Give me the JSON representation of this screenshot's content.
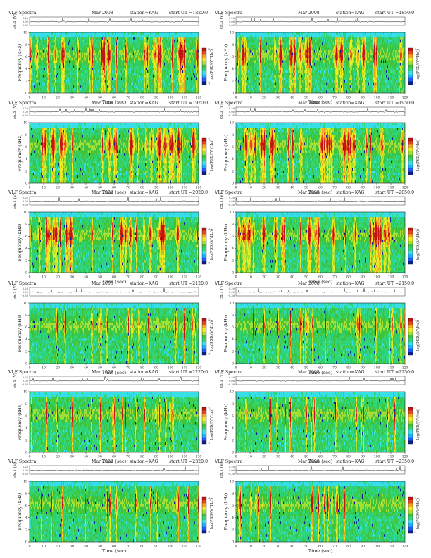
{
  "page": {
    "common": {
      "title": "VLF Spectra",
      "date": "Mar 2008",
      "station": "station=KAG",
      "start_prefix": "start  UT =",
      "ch_label": "ch.1 (V)",
      "freq_label": "Frequency (kHz)",
      "time_label": "Time (sec)",
      "cbar_label": "log(PSD/(V²/Hz))",
      "cbar_high": "-2",
      "cbar_low": "-7"
    }
  },
  "chart_data": [
    {
      "type": "heatmap",
      "start_ut": "1820:0",
      "title": "VLF Spectra",
      "date": "Mar 2008",
      "station": "station=KAG",
      "xlabel": "Time (sec)",
      "ylabel": "Frequency (kHz)",
      "x_range": [
        0,
        120
      ],
      "y_range": [
        0,
        10
      ],
      "x_ticks": [
        0,
        10,
        20,
        30,
        40,
        50,
        60,
        70,
        80,
        90,
        100,
        110,
        120
      ],
      "y_ticks": [
        0,
        2,
        4,
        6,
        8,
        10
      ],
      "colorbar": {
        "label": "log(PSD/(V²/Hz))",
        "range": [
          -7,
          -2
        ]
      },
      "waveform": {
        "ylabel": "ch.1 (V)",
        "ticks": [
          "0.20",
          "0.00",
          "-0.30"
        ]
      },
      "activity": "bursts"
    },
    {
      "type": "heatmap",
      "start_ut": "1850:0",
      "title": "VLF Spectra",
      "date": "Mar 2008",
      "station": "station=KAG",
      "xlabel": "Time (sec)",
      "ylabel": "Frequency (kHz)",
      "x_range": [
        0,
        120
      ],
      "y_range": [
        0,
        10
      ],
      "x_ticks": [
        0,
        10,
        20,
        30,
        40,
        50,
        60,
        70,
        80,
        90,
        100,
        110,
        120
      ],
      "y_ticks": [
        0,
        2,
        4,
        6,
        8,
        10
      ],
      "colorbar": {
        "label": "log(PSD/(V²/Hz))",
        "range": [
          -7,
          -2
        ]
      },
      "waveform": {
        "ylabel": "ch.1 (V)",
        "ticks": [
          "0.20",
          "0.00",
          "-0.30"
        ]
      },
      "activity": "bursts"
    },
    {
      "type": "heatmap",
      "start_ut": "1920:0",
      "title": "VLF Spectra",
      "date": "Mar 2008",
      "station": "station=KAG",
      "xlabel": "Time (sec)",
      "ylabel": "Frequency (kHz)",
      "x_range": [
        0,
        120
      ],
      "y_range": [
        0,
        10
      ],
      "x_ticks": [
        0,
        10,
        20,
        30,
        40,
        50,
        60,
        70,
        80,
        90,
        100,
        110,
        120
      ],
      "y_ticks": [
        0,
        2,
        4,
        6,
        8,
        10
      ],
      "colorbar": {
        "label": "log(PSD/(V²/Hz))",
        "range": [
          -7,
          -2
        ]
      },
      "waveform": {
        "ylabel": "ch.1 (V)",
        "ticks": [
          "0.20",
          "0.00",
          "-0.30"
        ]
      },
      "activity": "bursts"
    },
    {
      "type": "heatmap",
      "start_ut": "1950:0",
      "title": "VLF Spectra",
      "date": "Mar 2008",
      "station": "station=KAG",
      "xlabel": "Time (sec)",
      "ylabel": "Frequency (kHz)",
      "x_range": [
        0,
        120
      ],
      "y_range": [
        0,
        10
      ],
      "x_ticks": [
        0,
        10,
        20,
        30,
        40,
        50,
        60,
        70,
        80,
        90,
        100,
        110,
        120
      ],
      "y_ticks": [
        0,
        2,
        4,
        6,
        8,
        10
      ],
      "colorbar": {
        "label": "log(PSD/(V²/Hz))",
        "range": [
          -7,
          -2
        ]
      },
      "waveform": {
        "ylabel": "ch.1 (V)",
        "ticks": [
          "0.20",
          "0.00",
          "-0.30"
        ]
      },
      "activity": "bursts"
    },
    {
      "type": "heatmap",
      "start_ut": "2020:0",
      "title": "VLF Spectra",
      "date": "Mar 2008",
      "station": "station=KAG",
      "xlabel": "Time (sec)",
      "ylabel": "Frequency (kHz)",
      "x_range": [
        0,
        120
      ],
      "y_range": [
        0,
        10
      ],
      "x_ticks": [
        0,
        10,
        20,
        30,
        40,
        50,
        60,
        70,
        80,
        90,
        100,
        110,
        120
      ],
      "y_ticks": [
        0,
        2,
        4,
        6,
        8,
        10
      ],
      "colorbar": {
        "label": "log(PSD/(V²/Hz))",
        "range": [
          -7,
          -2
        ]
      },
      "waveform": {
        "ylabel": "ch.1 (V)",
        "ticks": [
          "0.20",
          "0.00",
          "-0.30"
        ]
      },
      "activity": "bursts"
    },
    {
      "type": "heatmap",
      "start_ut": "2050:0",
      "title": "VLF Spectra",
      "date": "Mar 2008",
      "station": "station=KAG",
      "xlabel": "Time (sec)",
      "ylabel": "Frequency (kHz)",
      "x_range": [
        0,
        120
      ],
      "y_range": [
        0,
        10
      ],
      "x_ticks": [
        0,
        10,
        20,
        30,
        40,
        50,
        60,
        70,
        80,
        90,
        100,
        110,
        120
      ],
      "y_ticks": [
        0,
        2,
        4,
        6,
        8,
        10
      ],
      "colorbar": {
        "label": "log(PSD/(V²/Hz))",
        "range": [
          -7,
          -2
        ]
      },
      "waveform": {
        "ylabel": "ch.1 (V)",
        "ticks": [
          "0.20",
          "0.00",
          "-0.30"
        ]
      },
      "activity": "bursts"
    },
    {
      "type": "heatmap",
      "start_ut": "2120:0",
      "title": "VLF Spectra",
      "date": "Mar 2008",
      "station": "station=KAG",
      "xlabel": "Time (sec)",
      "ylabel": "Frequency (kHz)",
      "x_range": [
        0,
        120
      ],
      "y_range": [
        0,
        10
      ],
      "x_ticks": [
        0,
        10,
        20,
        30,
        40,
        50,
        60,
        70,
        80,
        90,
        100,
        110,
        120
      ],
      "y_ticks": [
        0,
        2,
        4,
        6,
        8,
        10
      ],
      "colorbar": {
        "label": "log(PSD/(V²/Hz))",
        "range": [
          -7,
          -2
        ]
      },
      "waveform": {
        "ylabel": "ch.1 (V)",
        "ticks": [
          "0.20",
          "0.00",
          "-0.30"
        ]
      },
      "activity": "streaks"
    },
    {
      "type": "heatmap",
      "start_ut": "2150:0",
      "title": "VLF Spectra",
      "date": "Mar 2008",
      "station": "station=KAG",
      "xlabel": "Time (sec)",
      "ylabel": "Frequency (kHz)",
      "x_range": [
        0,
        120
      ],
      "y_range": [
        0,
        10
      ],
      "x_ticks": [
        0,
        10,
        20,
        30,
        40,
        50,
        60,
        70,
        80,
        90,
        100,
        110,
        120
      ],
      "y_ticks": [
        0,
        2,
        4,
        6,
        8,
        10
      ],
      "colorbar": {
        "label": "log(PSD/(V²/Hz))",
        "range": [
          -7,
          -2
        ]
      },
      "waveform": {
        "ylabel": "ch.1 (V)",
        "ticks": [
          "0.20",
          "0.00",
          "-0.30"
        ]
      },
      "activity": "streaks"
    },
    {
      "type": "heatmap",
      "start_ut": "2220:0",
      "title": "VLF Spectra",
      "date": "Mar 2008",
      "station": "station=KAG",
      "xlabel": "Time (sec)",
      "ylabel": "Frequency (kHz)",
      "x_range": [
        0,
        120
      ],
      "y_range": [
        0,
        10
      ],
      "x_ticks": [
        0,
        10,
        20,
        30,
        40,
        50,
        60,
        70,
        80,
        90,
        100,
        110,
        120
      ],
      "y_ticks": [
        0,
        2,
        4,
        6,
        8,
        10
      ],
      "colorbar": {
        "label": "log(PSD/(V²/Hz))",
        "range": [
          -7,
          -2
        ]
      },
      "waveform": {
        "ylabel": "ch.1 (V)",
        "ticks": [
          "0.20",
          "0.00",
          "-0.30"
        ]
      },
      "activity": "streaks"
    },
    {
      "type": "heatmap",
      "start_ut": "2250:0",
      "title": "VLF Spectra",
      "date": "Mar 2008",
      "station": "station=KAG",
      "xlabel": "Time (sec)",
      "ylabel": "Frequency (kHz)",
      "x_range": [
        0,
        120
      ],
      "y_range": [
        0,
        10
      ],
      "x_ticks": [
        0,
        10,
        20,
        30,
        40,
        50,
        60,
        70,
        80,
        90,
        100,
        110,
        120
      ],
      "y_ticks": [
        0,
        2,
        4,
        6,
        8,
        10
      ],
      "colorbar": {
        "label": "log(PSD/(V²/Hz))",
        "range": [
          -7,
          -2
        ]
      },
      "waveform": {
        "ylabel": "ch.1 (V)",
        "ticks": [
          "0.20",
          "0.00",
          "-0.30"
        ]
      },
      "activity": "streaks"
    },
    {
      "type": "heatmap",
      "start_ut": "2320:0",
      "title": "VLF Spectra",
      "date": "Mar 2008",
      "station": "station=KAG",
      "xlabel": "Time (sec)",
      "ylabel": "Frequency (kHz)",
      "x_range": [
        0,
        120
      ],
      "y_range": [
        0,
        10
      ],
      "x_ticks": [
        0,
        10,
        20,
        30,
        40,
        50,
        60,
        70,
        80,
        90,
        100,
        110,
        120
      ],
      "y_ticks": [
        0,
        2,
        4,
        6,
        8,
        10
      ],
      "colorbar": {
        "label": "log(PSD/(V²/Hz))",
        "range": [
          -7,
          -2
        ]
      },
      "waveform": {
        "ylabel": "ch.1 (V)",
        "ticks": [
          "0.20",
          "0.00",
          "-0.30"
        ]
      },
      "activity": "streaks"
    },
    {
      "type": "heatmap",
      "start_ut": "2350:0",
      "title": "VLF Spectra",
      "date": "Mar 2008",
      "station": "station=KAG",
      "xlabel": "Time (sec)",
      "ylabel": "Frequency (kHz)",
      "x_range": [
        0,
        120
      ],
      "y_range": [
        0,
        10
      ],
      "x_ticks": [
        0,
        10,
        20,
        30,
        40,
        50,
        60,
        70,
        80,
        90,
        100,
        110,
        120
      ],
      "y_ticks": [
        0,
        2,
        4,
        6,
        8,
        10
      ],
      "colorbar": {
        "label": "log(PSD/(V²/Hz))",
        "range": [
          -7,
          -2
        ]
      },
      "waveform": {
        "ylabel": "ch.1 (V)",
        "ticks": [
          "0.20",
          "0.00",
          "-0.30"
        ]
      },
      "activity": "streaks"
    }
  ]
}
